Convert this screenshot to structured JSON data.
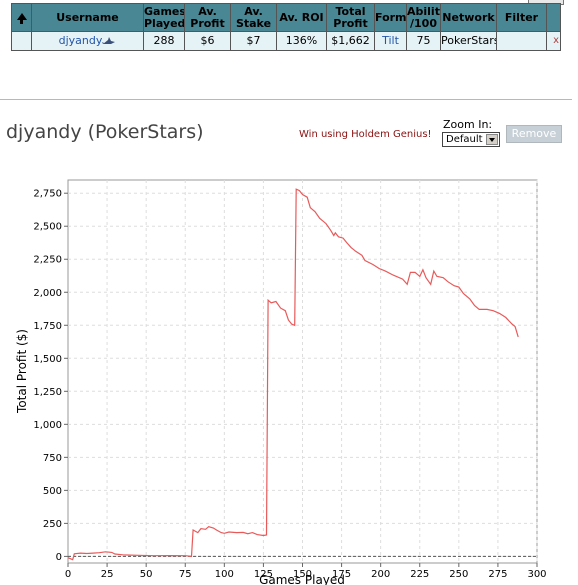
{
  "table": {
    "headers": [
      "",
      "Username",
      "Games Played",
      "Av. Profit",
      "Av. Stake",
      "Av. ROI",
      "Total Profit",
      "Form",
      "Ability /100",
      "Network",
      "Filter",
      ""
    ],
    "header_lines": {
      "games_played": [
        "Games",
        "Played"
      ],
      "av_profit": [
        "Av.",
        "Profit"
      ],
      "av_stake": [
        "Av.",
        "Stake"
      ],
      "total_profit": [
        "Total",
        "Profit"
      ],
      "ability": [
        "Ability",
        "/100"
      ]
    },
    "row": {
      "username": "djyandy",
      "games_played": "288",
      "av_profit": "$6",
      "av_stake": "$7",
      "av_roi": "136%",
      "total_profit": "$1,662",
      "form": "Tilt",
      "ability": "75",
      "network": "PokerStars",
      "filter": "",
      "remove": "x"
    }
  },
  "player": {
    "title": "djyandy (PokerStars)"
  },
  "promo": {
    "text": "Win using Holdem Genius!"
  },
  "zoom": {
    "label": "Zoom In:",
    "selected": "Default"
  },
  "remove_button": {
    "label": "Remove"
  },
  "colors": {
    "header_bg": "#4a8794",
    "row_bg": "#e6f3f6",
    "series": "#e85a5a",
    "link": "#2255aa"
  },
  "chart_data": {
    "type": "line",
    "xlabel": "Games Played",
    "ylabel": "Total Profit ($)",
    "xlim": [
      0,
      300
    ],
    "ylim": [
      -50,
      2850
    ],
    "xticks": [
      0,
      25,
      50,
      75,
      100,
      125,
      150,
      175,
      200,
      225,
      250,
      275,
      300
    ],
    "yticks": [
      0,
      250,
      500,
      750,
      1000,
      1250,
      1500,
      1750,
      2000,
      2250,
      2500,
      2750
    ],
    "grid": true,
    "zero_line": true,
    "series": [
      {
        "values": [
          [
            0,
            -10
          ],
          [
            3,
            -25
          ],
          [
            4,
            20
          ],
          [
            8,
            25
          ],
          [
            12,
            22
          ],
          [
            16,
            25
          ],
          [
            20,
            28
          ],
          [
            24,
            35
          ],
          [
            28,
            30
          ],
          [
            30,
            18
          ],
          [
            35,
            12
          ],
          [
            40,
            10
          ],
          [
            45,
            8
          ],
          [
            55,
            5
          ],
          [
            65,
            6
          ],
          [
            75,
            5
          ],
          [
            79,
            0
          ],
          [
            80,
            200
          ],
          [
            83,
            180
          ],
          [
            85,
            210
          ],
          [
            88,
            205
          ],
          [
            90,
            225
          ],
          [
            93,
            215
          ],
          [
            95,
            200
          ],
          [
            98,
            180
          ],
          [
            100,
            175
          ],
          [
            103,
            185
          ],
          [
            108,
            180
          ],
          [
            112,
            182
          ],
          [
            115,
            172
          ],
          [
            118,
            180
          ],
          [
            121,
            165
          ],
          [
            125,
            158
          ],
          [
            127,
            162
          ],
          [
            128,
            1940
          ],
          [
            130,
            1920
          ],
          [
            133,
            1930
          ],
          [
            136,
            1880
          ],
          [
            139,
            1860
          ],
          [
            141,
            1790
          ],
          [
            143,
            1760
          ],
          [
            145,
            1750
          ],
          [
            146,
            2780
          ],
          [
            148,
            2770
          ],
          [
            150,
            2740
          ],
          [
            153,
            2720
          ],
          [
            155,
            2640
          ],
          [
            158,
            2610
          ],
          [
            161,
            2560
          ],
          [
            165,
            2520
          ],
          [
            168,
            2470
          ],
          [
            170,
            2430
          ],
          [
            171,
            2450
          ],
          [
            173,
            2420
          ],
          [
            176,
            2410
          ],
          [
            178,
            2380
          ],
          [
            181,
            2340
          ],
          [
            184,
            2310
          ],
          [
            188,
            2280
          ],
          [
            190,
            2240
          ],
          [
            195,
            2210
          ],
          [
            199,
            2180
          ],
          [
            203,
            2160
          ],
          [
            208,
            2130
          ],
          [
            214,
            2100
          ],
          [
            217,
            2060
          ],
          [
            219,
            2150
          ],
          [
            222,
            2150
          ],
          [
            225,
            2120
          ],
          [
            227,
            2170
          ],
          [
            229,
            2110
          ],
          [
            232,
            2060
          ],
          [
            234,
            2160
          ],
          [
            236,
            2120
          ],
          [
            240,
            2110
          ],
          [
            243,
            2080
          ],
          [
            247,
            2050
          ],
          [
            250,
            2040
          ],
          [
            253,
            1990
          ],
          [
            257,
            1950
          ],
          [
            260,
            1900
          ],
          [
            263,
            1870
          ],
          [
            268,
            1870
          ],
          [
            272,
            1860
          ],
          [
            276,
            1840
          ],
          [
            280,
            1810
          ],
          [
            284,
            1760
          ],
          [
            286,
            1740
          ],
          [
            288,
            1662
          ]
        ]
      }
    ]
  }
}
